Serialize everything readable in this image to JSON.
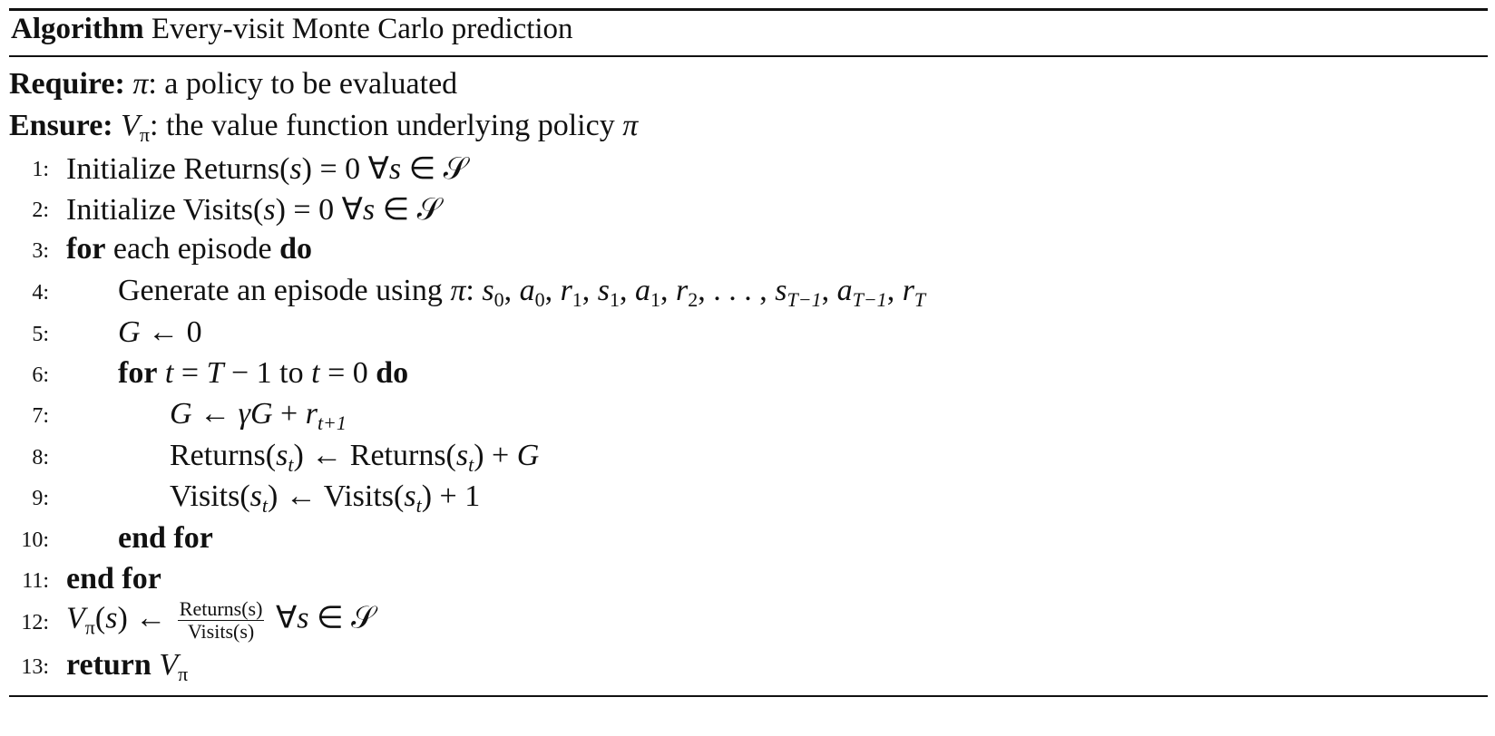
{
  "title": {
    "label": "Algorithm",
    "name": "Every-visit Monte Carlo prediction"
  },
  "header_lines": [
    {
      "segments": [
        {
          "t": "Require: ",
          "s": "b"
        },
        {
          "t": "π",
          "s": "i"
        },
        {
          "t": ": a policy to be evaluated",
          "s": "r"
        }
      ]
    },
    {
      "segments": [
        {
          "t": "Ensure: ",
          "s": "b"
        },
        {
          "t": "V",
          "s": "i"
        },
        {
          "t": "π",
          "s": "sub"
        },
        {
          "t": ": the value function underlying policy ",
          "s": "r"
        },
        {
          "t": "π",
          "s": "i"
        }
      ]
    }
  ],
  "steps": [
    {
      "num": "1:",
      "indent": 0,
      "segments": [
        {
          "t": "Initialize Returns(",
          "s": "r"
        },
        {
          "t": "s",
          "s": "i"
        },
        {
          "t": ") = 0 ∀",
          "s": "r"
        },
        {
          "t": "s",
          "s": "i"
        },
        {
          "t": " ∈ ",
          "s": "r"
        },
        {
          "t": "𝒮",
          "s": "r"
        }
      ]
    },
    {
      "num": "2:",
      "indent": 0,
      "segments": [
        {
          "t": "Initialize Visits(",
          "s": "r"
        },
        {
          "t": "s",
          "s": "i"
        },
        {
          "t": ") = 0 ∀",
          "s": "r"
        },
        {
          "t": "s",
          "s": "i"
        },
        {
          "t": " ∈ ",
          "s": "r"
        },
        {
          "t": "𝒮",
          "s": "r"
        }
      ]
    },
    {
      "num": "3:",
      "indent": 0,
      "segments": [
        {
          "t": "for",
          "s": "b"
        },
        {
          "t": " each episode ",
          "s": "r"
        },
        {
          "t": "do",
          "s": "b"
        }
      ]
    },
    {
      "num": "4:",
      "indent": 1,
      "segments": [
        {
          "t": "Generate an episode using ",
          "s": "r"
        },
        {
          "t": "π",
          "s": "i"
        },
        {
          "t": ":  ",
          "s": "r"
        },
        {
          "t": "s",
          "s": "i"
        },
        {
          "t": "0",
          "s": "sub"
        },
        {
          "t": ", ",
          "s": "r"
        },
        {
          "t": "a",
          "s": "i"
        },
        {
          "t": "0",
          "s": "sub"
        },
        {
          "t": ", ",
          "s": "r"
        },
        {
          "t": "r",
          "s": "i"
        },
        {
          "t": "1",
          "s": "sub"
        },
        {
          "t": ", ",
          "s": "r"
        },
        {
          "t": "s",
          "s": "i"
        },
        {
          "t": "1",
          "s": "sub"
        },
        {
          "t": ", ",
          "s": "r"
        },
        {
          "t": "a",
          "s": "i"
        },
        {
          "t": "1",
          "s": "sub"
        },
        {
          "t": ", ",
          "s": "r"
        },
        {
          "t": "r",
          "s": "i"
        },
        {
          "t": "2",
          "s": "sub"
        },
        {
          "t": ", . . . , ",
          "s": "r"
        },
        {
          "t": "s",
          "s": "i"
        },
        {
          "t": "T−1",
          "s": "subi"
        },
        {
          "t": ", ",
          "s": "r"
        },
        {
          "t": "a",
          "s": "i"
        },
        {
          "t": "T−1",
          "s": "subi"
        },
        {
          "t": ", ",
          "s": "r"
        },
        {
          "t": "r",
          "s": "i"
        },
        {
          "t": "T",
          "s": "subi"
        }
      ]
    },
    {
      "num": "5:",
      "indent": 1,
      "segments": [
        {
          "t": "G",
          "s": "i"
        },
        {
          "t": " ← 0",
          "s": "r"
        }
      ]
    },
    {
      "num": "6:",
      "indent": 1,
      "segments": [
        {
          "t": "for",
          "s": "b"
        },
        {
          "t": " ",
          "s": "r"
        },
        {
          "t": "t",
          "s": "i"
        },
        {
          "t": " = ",
          "s": "r"
        },
        {
          "t": "T",
          "s": "i"
        },
        {
          "t": " − 1 to ",
          "s": "r"
        },
        {
          "t": "t",
          "s": "i"
        },
        {
          "t": " = 0 ",
          "s": "r"
        },
        {
          "t": "do",
          "s": "b"
        }
      ]
    },
    {
      "num": "7:",
      "indent": 2,
      "segments": [
        {
          "t": "G",
          "s": "i"
        },
        {
          "t": " ← ",
          "s": "r"
        },
        {
          "t": "γG",
          "s": "i"
        },
        {
          "t": " + ",
          "s": "r"
        },
        {
          "t": "r",
          "s": "i"
        },
        {
          "t": "t+1",
          "s": "subi"
        }
      ]
    },
    {
      "num": "8:",
      "indent": 2,
      "segments": [
        {
          "t": "Returns(",
          "s": "r"
        },
        {
          "t": "s",
          "s": "i"
        },
        {
          "t": "t",
          "s": "subi"
        },
        {
          "t": ") ← Returns(",
          "s": "r"
        },
        {
          "t": "s",
          "s": "i"
        },
        {
          "t": "t",
          "s": "subi"
        },
        {
          "t": ") + ",
          "s": "r"
        },
        {
          "t": "G",
          "s": "i"
        }
      ]
    },
    {
      "num": "9:",
      "indent": 2,
      "segments": [
        {
          "t": "Visits(",
          "s": "r"
        },
        {
          "t": "s",
          "s": "i"
        },
        {
          "t": "t",
          "s": "subi"
        },
        {
          "t": ") ← Visits(",
          "s": "r"
        },
        {
          "t": "s",
          "s": "i"
        },
        {
          "t": "t",
          "s": "subi"
        },
        {
          "t": ") + 1",
          "s": "r"
        }
      ]
    },
    {
      "num": "10:",
      "indent": 1,
      "segments": [
        {
          "t": "end for",
          "s": "b"
        }
      ]
    },
    {
      "num": "11:",
      "indent": 0,
      "segments": [
        {
          "t": "end for",
          "s": "b"
        }
      ]
    },
    {
      "num": "12:",
      "indent": 0,
      "segments": [
        {
          "t": "V",
          "s": "i"
        },
        {
          "t": "π",
          "s": "sub"
        },
        {
          "t": "(",
          "s": "r"
        },
        {
          "t": "s",
          "s": "i"
        },
        {
          "t": ") ← ",
          "s": "r"
        },
        {
          "t": "",
          "s": "frac",
          "num": "Returns(s)",
          "den": "Visits(s)"
        },
        {
          "t": " ∀",
          "s": "r"
        },
        {
          "t": "s",
          "s": "i"
        },
        {
          "t": " ∈ ",
          "s": "r"
        },
        {
          "t": "𝒮",
          "s": "r"
        }
      ]
    },
    {
      "num": "13:",
      "indent": 0,
      "segments": [
        {
          "t": "return",
          "s": "b"
        },
        {
          "t": " ",
          "s": "r"
        },
        {
          "t": "V",
          "s": "i"
        },
        {
          "t": "π",
          "s": "sub"
        }
      ]
    }
  ]
}
